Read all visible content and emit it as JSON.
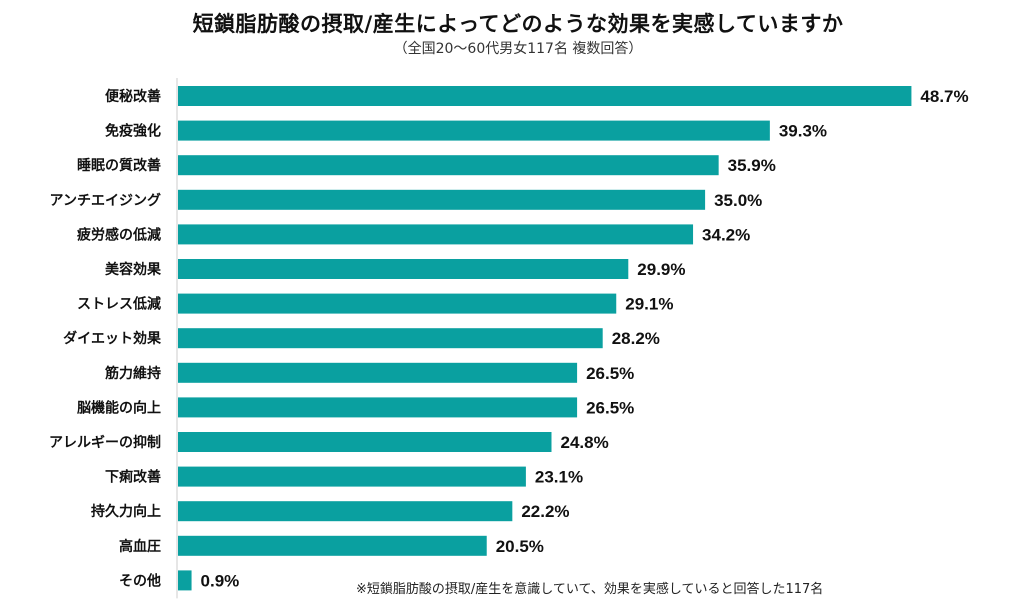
{
  "chart_data": {
    "type": "bar",
    "orientation": "horizontal",
    "title": "短鎖脂肪酸の摂取/産生によってどのような効果を実感していますか",
    "subtitle": "（全国20～60代男女117名 複数回答）",
    "categories": [
      "便秘改善",
      "免疫強化",
      "睡眠の質改善",
      "アンチエイジング",
      "疲労感の低減",
      "美容効果",
      "ストレス低減",
      "ダイエット効果",
      "筋力維持",
      "脳機能の向上",
      "アレルギーの抑制",
      "下痢改善",
      "持久力向上",
      "高血圧",
      "その他"
    ],
    "values": [
      48.7,
      39.3,
      35.9,
      35.0,
      34.2,
      29.9,
      29.1,
      28.2,
      26.5,
      26.5,
      24.8,
      23.1,
      22.2,
      20.5,
      0.9
    ],
    "value_labels": [
      "48.7%",
      "39.3%",
      "35.9%",
      "35.0%",
      "34.2%",
      "29.9%",
      "29.1%",
      "28.2%",
      "26.5%",
      "26.5%",
      "24.8%",
      "23.1%",
      "22.2%",
      "20.5%",
      "0.9%"
    ],
    "unit": "%",
    "xlim": [
      0,
      50
    ],
    "bar_color": "#0aa0a0",
    "grid": false,
    "legend": "none",
    "footnote": "※短鎖脂肪酸の摂取/産生を意識していて、効果を実感していると回答した117名"
  }
}
